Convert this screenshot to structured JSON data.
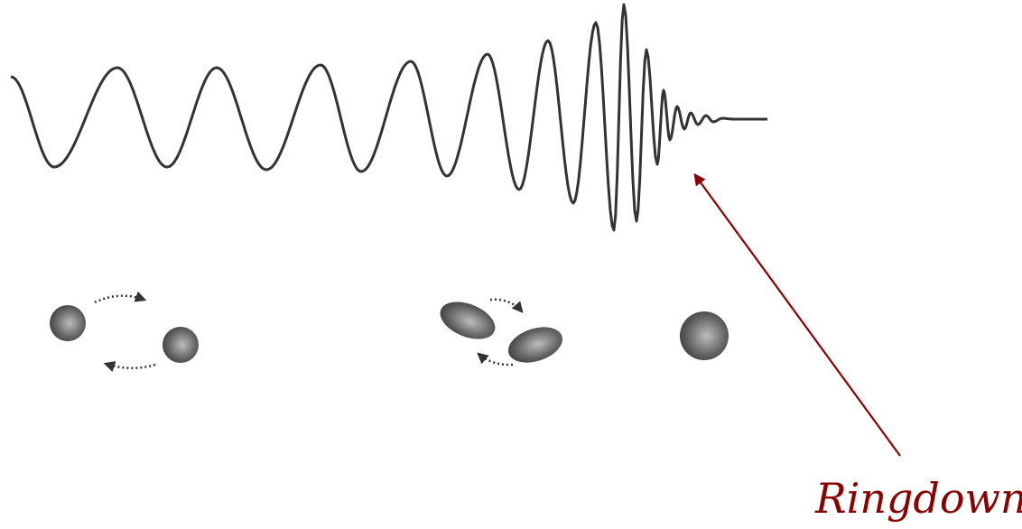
{
  "annotation": {
    "label": "Ringdown"
  }
}
